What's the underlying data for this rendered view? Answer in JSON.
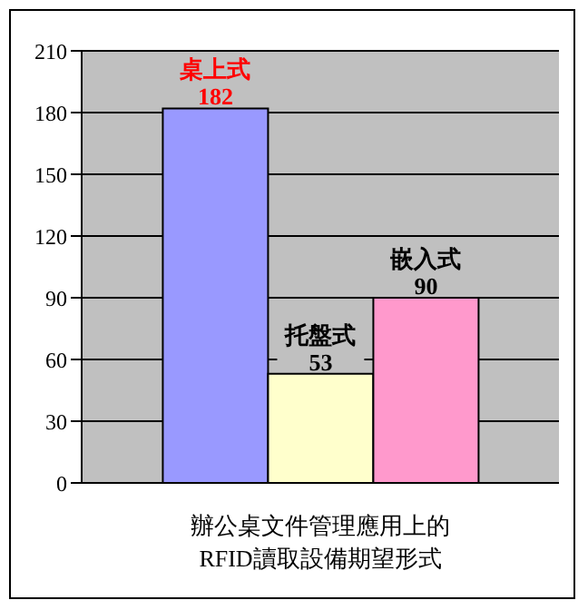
{
  "chart_data": {
    "type": "bar",
    "xlabel": "辦公桌文件管理應用上的\nRFID讀取設備期望形式",
    "categories": [
      null
    ],
    "series": [
      {
        "name": "桌上式",
        "color": "#9999ff",
        "values": [
          182
        ]
      },
      {
        "name": "托盤式",
        "color": "#ffffcc",
        "values": [
          53
        ]
      },
      {
        "name": "嵌入式",
        "color": "#ff99cc",
        "values": [
          90
        ]
      }
    ],
    "ylim": [
      0,
      210
    ],
    "yticks": [
      0,
      30,
      60,
      90,
      120,
      150,
      180,
      210
    ],
    "grid": "y",
    "data_labels": true
  }
}
